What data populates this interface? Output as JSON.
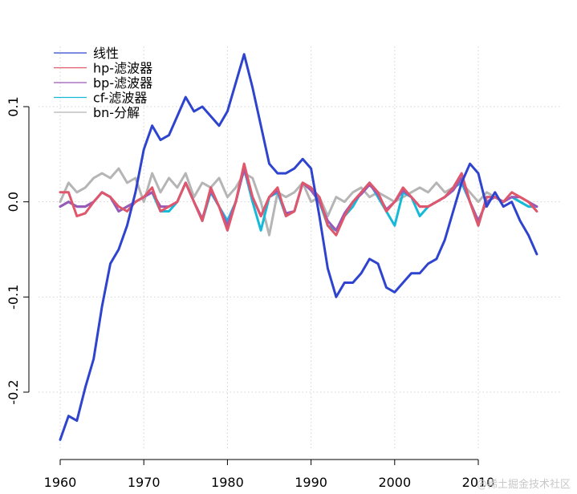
{
  "chart_data": {
    "type": "line",
    "title": "",
    "xlabel": "",
    "ylabel": "",
    "xlim": [
      1960,
      2018
    ],
    "ylim": [
      -0.265,
      0.165
    ],
    "x_ticks": [
      1960,
      1970,
      1980,
      1990,
      2000,
      2010
    ],
    "x_tick_labels": [
      "1960",
      "1970",
      "1980",
      "1990",
      "2000",
      "2010"
    ],
    "y_ticks": [
      -0.2,
      -0.1,
      0.0,
      0.1
    ],
    "y_tick_labels": [
      "-0.2",
      "-0.1",
      "0.0",
      "0.1"
    ],
    "grid": true,
    "legend_position": "top-left",
    "series": [
      {
        "name": "线性",
        "color": "#2e44cf",
        "x": [
          1960,
          1961,
          1962,
          1963,
          1964,
          1965,
          1966,
          1967,
          1968,
          1969,
          1970,
          1971,
          1972,
          1973,
          1974,
          1975,
          1976,
          1977,
          1978,
          1979,
          1980,
          1981,
          1982,
          1983,
          1984,
          1985,
          1986,
          1987,
          1988,
          1989,
          1990,
          1991,
          1992,
          1993,
          1994,
          1995,
          1996,
          1997,
          1998,
          1999,
          2000,
          2001,
          2002,
          2003,
          2004,
          2005,
          2006,
          2007,
          2008,
          2009,
          2010,
          2011,
          2012,
          2013,
          2014,
          2015,
          2016,
          2017
        ],
        "y": [
          -0.25,
          -0.225,
          -0.23,
          -0.195,
          -0.165,
          -0.11,
          -0.065,
          -0.05,
          -0.025,
          0.01,
          0.055,
          0.08,
          0.065,
          0.07,
          0.09,
          0.11,
          0.095,
          0.1,
          0.09,
          0.08,
          0.095,
          0.125,
          0.155,
          0.12,
          0.08,
          0.04,
          0.03,
          0.03,
          0.035,
          0.045,
          0.035,
          -0.015,
          -0.07,
          -0.1,
          -0.085,
          -0.085,
          -0.075,
          -0.06,
          -0.065,
          -0.09,
          -0.095,
          -0.085,
          -0.075,
          -0.075,
          -0.065,
          -0.06,
          -0.04,
          -0.01,
          0.02,
          0.04,
          0.03,
          -0.005,
          0.01,
          -0.005,
          0.0,
          -0.02,
          -0.035,
          -0.055
        ]
      },
      {
        "name": "hp-滤波器",
        "color": "#e0566a",
        "x": [
          1960,
          1961,
          1962,
          1963,
          1964,
          1965,
          1966,
          1967,
          1968,
          1969,
          1970,
          1971,
          1972,
          1973,
          1974,
          1975,
          1976,
          1977,
          1978,
          1979,
          1980,
          1981,
          1982,
          1983,
          1984,
          1985,
          1986,
          1987,
          1988,
          1989,
          1990,
          1991,
          1992,
          1993,
          1994,
          1995,
          1996,
          1997,
          1998,
          1999,
          2000,
          2001,
          2002,
          2003,
          2004,
          2005,
          2006,
          2007,
          2008,
          2009,
          2010,
          2011,
          2012,
          2013,
          2014,
          2015,
          2016,
          2017
        ],
        "y": [
          0.01,
          0.01,
          -0.015,
          -0.012,
          0.0,
          0.01,
          0.005,
          -0.005,
          -0.01,
          0.0,
          0.005,
          0.015,
          -0.01,
          -0.005,
          0.0,
          0.02,
          0.0,
          -0.02,
          0.015,
          -0.005,
          -0.03,
          0.0,
          0.04,
          0.005,
          -0.015,
          0.005,
          0.015,
          -0.015,
          -0.01,
          0.02,
          0.015,
          0.005,
          -0.025,
          -0.035,
          -0.015,
          0.0,
          0.01,
          0.02,
          0.01,
          -0.01,
          0.0,
          0.015,
          0.005,
          -0.005,
          -0.005,
          0.0,
          0.005,
          0.015,
          0.03,
          0.0,
          -0.025,
          0.005,
          0.005,
          0.0,
          0.01,
          0.005,
          0.0,
          -0.01
        ]
      },
      {
        "name": "bp-滤波器",
        "color": "#9b59b6",
        "x": [
          1960,
          1961,
          1962,
          1963,
          1964,
          1965,
          1966,
          1967,
          1968,
          1969,
          1970,
          1971,
          1972,
          1973,
          1974,
          1975,
          1976,
          1977,
          1978,
          1979,
          1980,
          1981,
          1982,
          1983,
          1984,
          1985,
          1986,
          1987,
          1988,
          1989,
          1990,
          1991,
          1992,
          1993,
          1994,
          1995,
          1996,
          1997,
          1998,
          1999,
          2000,
          2001,
          2002,
          2003,
          2004,
          2005,
          2006,
          2007,
          2008,
          2009,
          2010,
          2011,
          2012,
          2013,
          2014,
          2015,
          2016,
          2017
        ],
        "y": [
          -0.005,
          0.0,
          -0.005,
          -0.005,
          0.0,
          0.01,
          0.005,
          -0.01,
          -0.005,
          0.0,
          0.005,
          0.01,
          -0.005,
          -0.005,
          0.0,
          0.02,
          0.0,
          -0.018,
          0.012,
          -0.005,
          -0.025,
          0.0,
          0.035,
          0.005,
          -0.015,
          0.005,
          0.012,
          -0.012,
          -0.01,
          0.02,
          0.012,
          0.0,
          -0.02,
          -0.03,
          -0.012,
          0.0,
          0.008,
          0.018,
          0.008,
          -0.008,
          0.0,
          0.012,
          0.005,
          -0.005,
          -0.005,
          0.0,
          0.005,
          0.012,
          0.025,
          0.0,
          -0.02,
          0.0,
          0.005,
          0.0,
          0.005,
          0.005,
          0.0,
          -0.005
        ]
      },
      {
        "name": "cf-滤波器",
        "color": "#17b9d9",
        "x": [
          1960,
          1961,
          1962,
          1963,
          1964,
          1965,
          1966,
          1967,
          1968,
          1969,
          1970,
          1971,
          1972,
          1973,
          1974,
          1975,
          1976,
          1977,
          1978,
          1979,
          1980,
          1981,
          1982,
          1983,
          1984,
          1985,
          1986,
          1987,
          1988,
          1989,
          1990,
          1991,
          1992,
          1993,
          1994,
          1995,
          1996,
          1997,
          1998,
          1999,
          2000,
          2001,
          2002,
          2003,
          2004,
          2005,
          2006,
          2007,
          2008,
          2009,
          2010,
          2011,
          2012,
          2013,
          2014,
          2015,
          2016,
          2017
        ],
        "y": [
          -0.005,
          0.0,
          -0.005,
          -0.005,
          0.0,
          0.01,
          0.005,
          -0.01,
          -0.005,
          0.0,
          0.005,
          0.01,
          -0.01,
          -0.01,
          0.0,
          0.02,
          0.0,
          -0.02,
          0.01,
          -0.005,
          -0.02,
          0.0,
          0.035,
          0.0,
          -0.03,
          0.005,
          0.01,
          -0.015,
          -0.01,
          0.02,
          0.015,
          0.0,
          -0.025,
          -0.03,
          -0.015,
          -0.005,
          0.01,
          0.02,
          0.005,
          -0.01,
          -0.025,
          0.01,
          0.005,
          -0.015,
          -0.005,
          0.0,
          0.005,
          0.015,
          0.02,
          0.0,
          -0.025,
          0.005,
          0.005,
          0.0,
          0.005,
          0.0,
          -0.005,
          -0.005
        ]
      },
      {
        "name": "bn-分解",
        "color": "#b5b5b5",
        "x": [
          1960,
          1961,
          1962,
          1963,
          1964,
          1965,
          1966,
          1967,
          1968,
          1969,
          1970,
          1971,
          1972,
          1973,
          1974,
          1975,
          1976,
          1977,
          1978,
          1979,
          1980,
          1981,
          1982,
          1983,
          1984,
          1985,
          1986,
          1987,
          1988,
          1989,
          1990,
          1991,
          1992,
          1993,
          1994,
          1995,
          1996,
          1997,
          1998,
          1999,
          2000,
          2001,
          2002,
          2003,
          2004,
          2005,
          2006,
          2007,
          2008,
          2009,
          2010,
          2011,
          2012,
          2013,
          2014,
          2015,
          2016,
          2017
        ],
        "y": [
          0.0,
          0.02,
          0.01,
          0.015,
          0.025,
          0.03,
          0.025,
          0.035,
          0.02,
          0.025,
          0.0,
          0.03,
          0.01,
          0.025,
          0.015,
          0.03,
          0.005,
          0.02,
          0.015,
          0.025,
          0.005,
          0.015,
          0.03,
          0.025,
          0.0,
          -0.035,
          0.01,
          0.005,
          0.01,
          0.02,
          0.0,
          0.005,
          -0.015,
          0.005,
          0.0,
          0.01,
          0.015,
          0.005,
          0.01,
          0.005,
          0.0,
          0.005,
          0.01,
          0.015,
          0.01,
          0.02,
          0.01,
          0.015,
          0.02,
          0.01,
          0.0,
          0.01,
          0.005,
          0.0,
          0.005,
          0.0,
          -0.005,
          -0.005
        ]
      }
    ]
  },
  "watermark": "@稀土掘金技术社区"
}
